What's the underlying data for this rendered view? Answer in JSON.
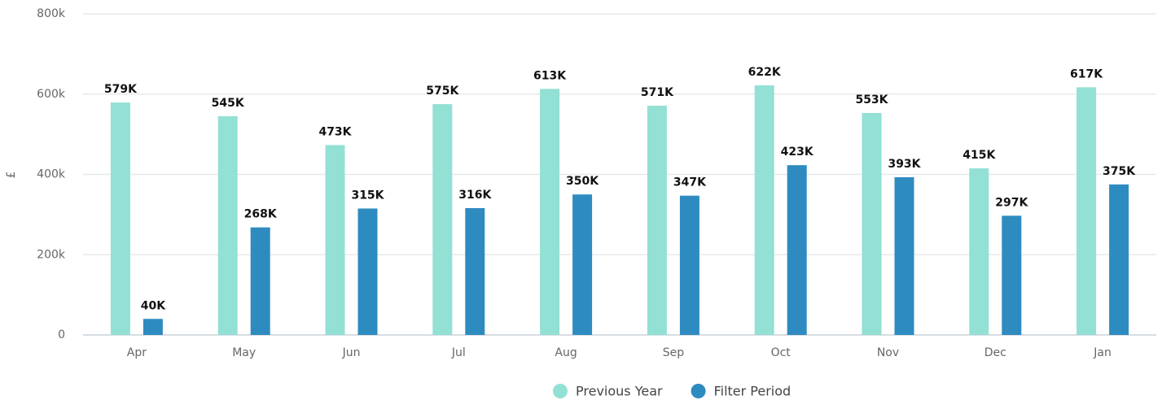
{
  "chart_data": {
    "type": "bar",
    "y_label": "£",
    "categories": [
      "Apr",
      "May",
      "Jun",
      "Jul",
      "Aug",
      "Sep",
      "Oct",
      "Nov",
      "Dec",
      "Jan"
    ],
    "series": [
      {
        "name": "Previous Year",
        "color": "#93e0d4",
        "values": [
          579000,
          545000,
          473000,
          575000,
          613000,
          571000,
          622000,
          553000,
          415000,
          617000
        ],
        "value_labels": [
          "579K",
          "545K",
          "473K",
          "575K",
          "613K",
          "571K",
          "622K",
          "553K",
          "415K",
          "617K"
        ]
      },
      {
        "name": "Filter Period",
        "color": "#2e8bc0",
        "values": [
          40000,
          268000,
          315000,
          316000,
          350000,
          347000,
          423000,
          393000,
          297000,
          375000
        ],
        "value_labels": [
          "40K",
          "268K",
          "315K",
          "316K",
          "350K",
          "347K",
          "423K",
          "393K",
          "297K",
          "375K"
        ]
      }
    ],
    "ylim": [
      0,
      800000
    ],
    "yticks": [
      0,
      {
        "value": 200000,
        "label": "200k"
      },
      {
        "value": 400000,
        "label": "400k"
      },
      {
        "value": 600000,
        "label": "600k"
      },
      {
        "value": 800000,
        "label": "800k"
      }
    ],
    "grid": true,
    "legend": "bottom"
  }
}
